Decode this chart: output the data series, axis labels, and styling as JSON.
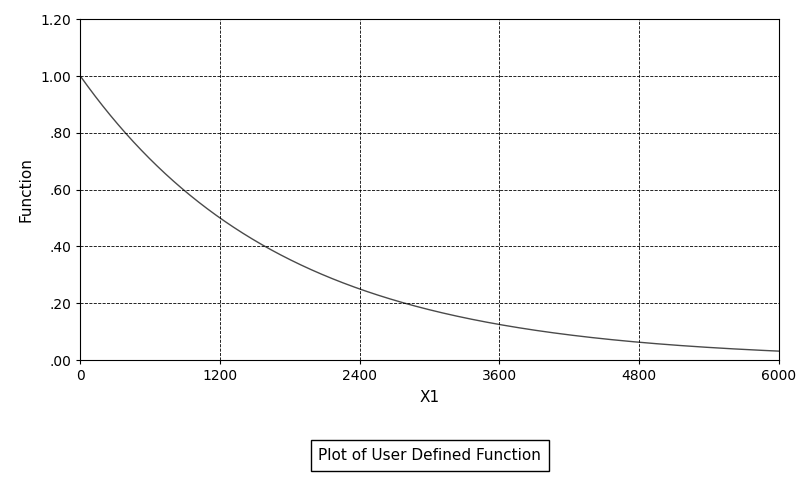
{
  "xlabel": "X1",
  "ylabel": "Function",
  "legend_label": "Plot of User Defined Function",
  "xlim": [
    0,
    6000
  ],
  "ylim": [
    0.0,
    1.2
  ],
  "xticks": [
    0,
    1200,
    2400,
    3600,
    4800,
    6000
  ],
  "yticks": [
    0.0,
    0.2,
    0.4,
    0.6,
    0.8,
    1.0,
    1.2
  ],
  "decay_k": 0.000578,
  "line_color": "#4a4a4a",
  "background_color": "#ffffff",
  "grid_color": "#000000",
  "figsize": [
    8.03,
    4.8
  ],
  "dpi": 100
}
